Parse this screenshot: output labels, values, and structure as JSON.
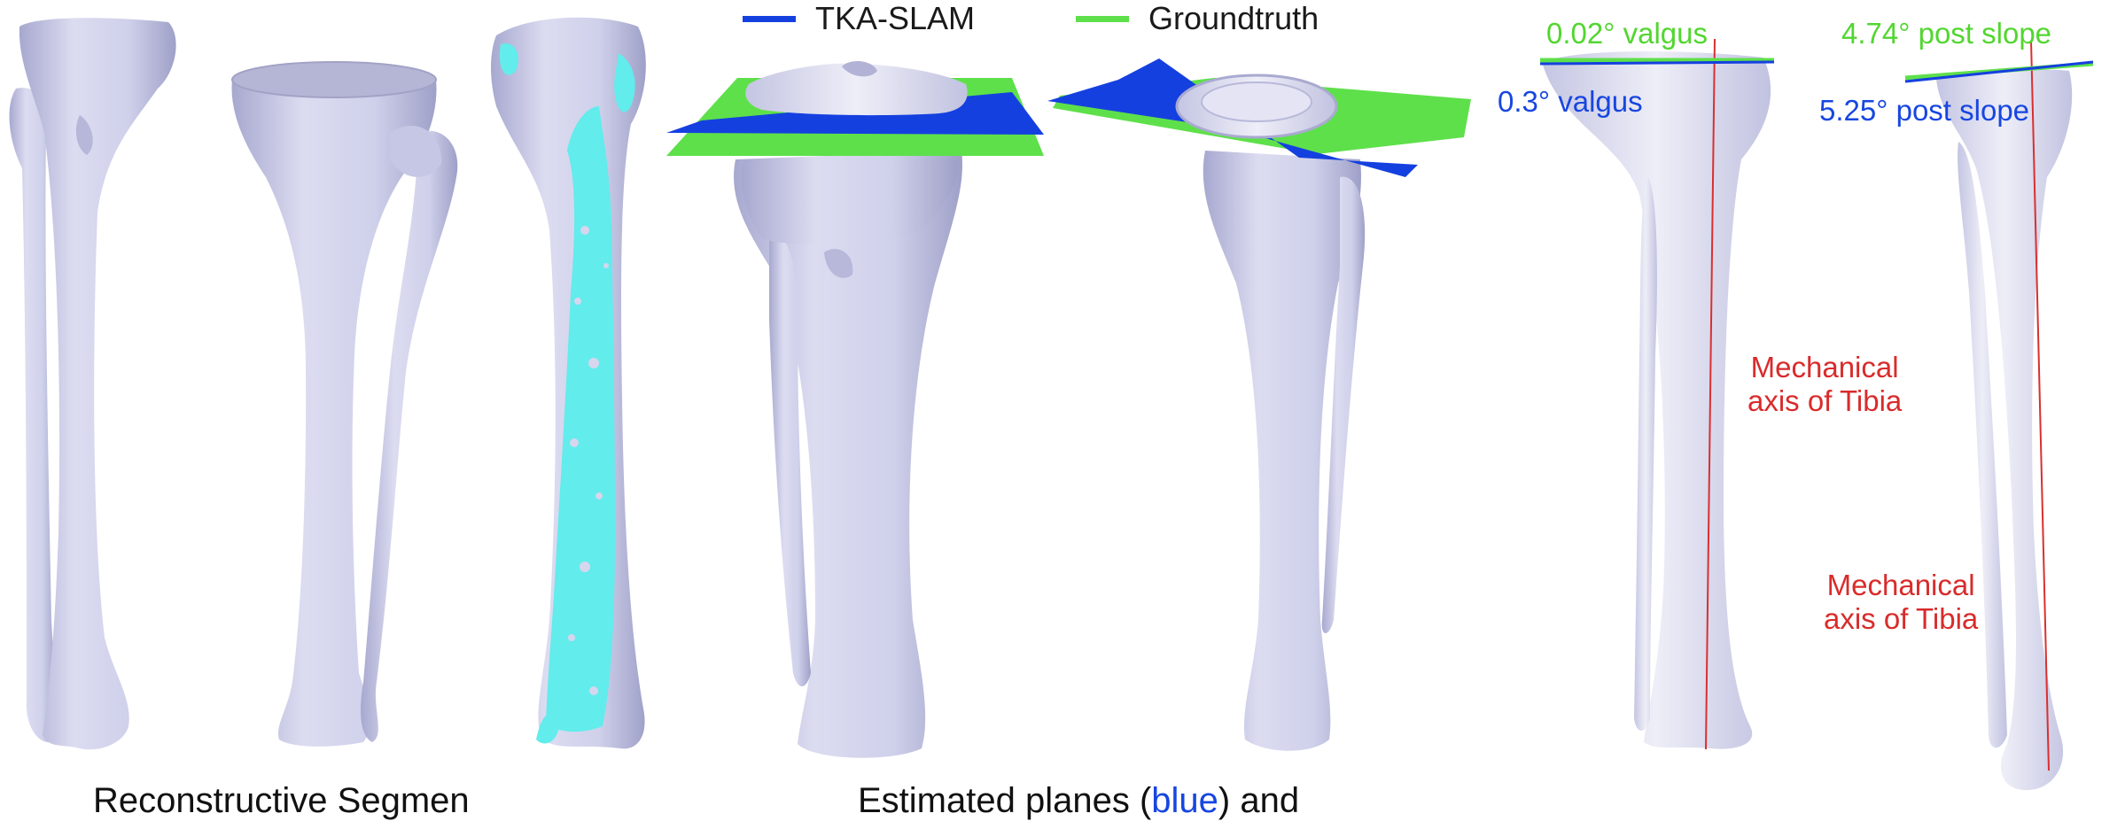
{
  "legend": {
    "items": [
      {
        "label": "TKA-SLAM",
        "color": "#1540e0"
      },
      {
        "label": "Groundtruth",
        "color": "#5ee04a"
      }
    ]
  },
  "colors": {
    "bone": "#d2d3ec",
    "bone_shade": "#a9aad0",
    "registered_points": "#62ecec",
    "axis_line": "#d93030",
    "slam_plane": "#1540e0",
    "gt_plane": "#5ee04a"
  },
  "annotations": {
    "gt_valgus": "0.02° valgus",
    "slam_valgus": "0.3° valgus",
    "gt_slope": "4.74° post slope",
    "slam_slope": "5.25° post slope",
    "axis_label_1": "Mechanical\naxis of Tibia",
    "axis_label_2": "Mechanical\naxis of Tibia"
  },
  "captions": {
    "left": "Reconstructive Segmen",
    "middle_prefix": "Estimated planes (",
    "middle_blue": "blue",
    "middle_suffix": ") and"
  }
}
